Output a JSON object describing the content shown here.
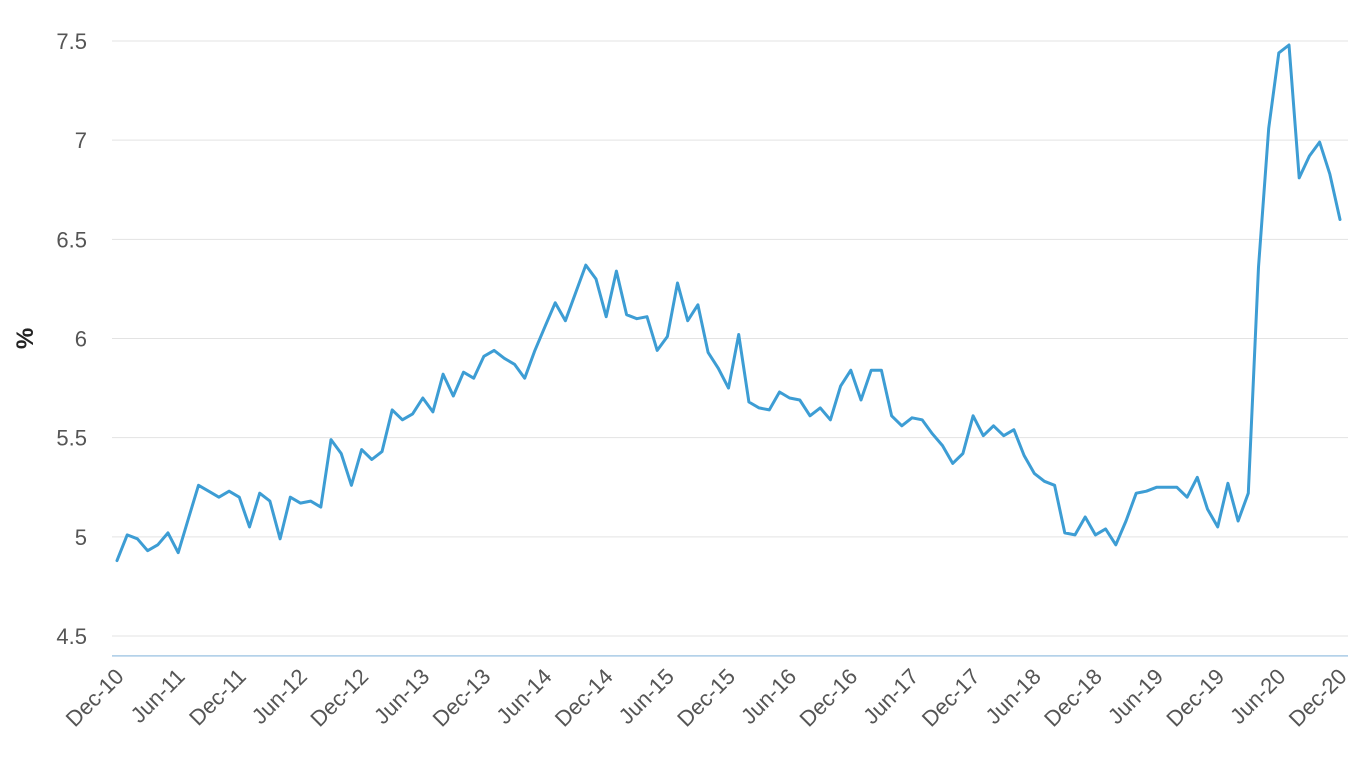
{
  "chart_data": {
    "type": "line",
    "title": "",
    "xlabel": "",
    "ylabel": "%",
    "ylim": [
      4.4,
      7.5
    ],
    "yticks": [
      4.5,
      5,
      5.5,
      6,
      6.5,
      7,
      7.5
    ],
    "ytick_labels": [
      "4.5",
      "5",
      "5.5",
      "6",
      "6.5",
      "7",
      "7.5"
    ],
    "xtick_labels": [
      "Dec-10",
      "Jun-11",
      "Dec-11",
      "Jun-12",
      "Dec-12",
      "Jun-13",
      "Dec-13",
      "Jun-14",
      "Dec-14",
      "Jun-15",
      "Dec-15",
      "Jun-16",
      "Dec-16",
      "Jun-17",
      "Dec-17",
      "Jun-18",
      "Dec-18",
      "Jun-19",
      "Dec-19",
      "Jun-20",
      "Dec-20"
    ],
    "grid": true,
    "legend": "none",
    "colors": {
      "line": "#3d9dd4"
    },
    "series": [
      {
        "name": "",
        "x": [
          "Dec-10",
          "Jan-11",
          "Feb-11",
          "Mar-11",
          "Apr-11",
          "May-11",
          "Jun-11",
          "Jul-11",
          "Aug-11",
          "Sep-11",
          "Oct-11",
          "Nov-11",
          "Dec-11",
          "Jan-12",
          "Feb-12",
          "Mar-12",
          "Apr-12",
          "May-12",
          "Jun-12",
          "Jul-12",
          "Aug-12",
          "Sep-12",
          "Oct-12",
          "Nov-12",
          "Dec-12",
          "Jan-13",
          "Feb-13",
          "Mar-13",
          "Apr-13",
          "May-13",
          "Jun-13",
          "Jul-13",
          "Aug-13",
          "Sep-13",
          "Oct-13",
          "Nov-13",
          "Dec-13",
          "Jan-14",
          "Feb-14",
          "Mar-14",
          "Apr-14",
          "May-14",
          "Jun-14",
          "Jul-14",
          "Aug-14",
          "Sep-14",
          "Oct-14",
          "Nov-14",
          "Dec-14",
          "Jan-15",
          "Feb-15",
          "Mar-15",
          "Apr-15",
          "May-15",
          "Jun-15",
          "Jul-15",
          "Aug-15",
          "Sep-15",
          "Oct-15",
          "Nov-15",
          "Dec-15",
          "Jan-16",
          "Feb-16",
          "Mar-16",
          "Apr-16",
          "May-16",
          "Jun-16",
          "Jul-16",
          "Aug-16",
          "Sep-16",
          "Oct-16",
          "Nov-16",
          "Dec-16",
          "Jan-17",
          "Feb-17",
          "Mar-17",
          "Apr-17",
          "May-17",
          "Jun-17",
          "Jul-17",
          "Aug-17",
          "Sep-17",
          "Oct-17",
          "Nov-17",
          "Dec-17",
          "Jan-18",
          "Feb-18",
          "Mar-18",
          "Apr-18",
          "May-18",
          "Jun-18",
          "Jul-18",
          "Aug-18",
          "Sep-18",
          "Oct-18",
          "Nov-18",
          "Dec-18",
          "Jan-19",
          "Feb-19",
          "Mar-19",
          "Apr-19",
          "May-19",
          "Jun-19",
          "Jul-19",
          "Aug-19",
          "Sep-19",
          "Oct-19",
          "Nov-19",
          "Dec-19",
          "Jan-20",
          "Feb-20",
          "Mar-20",
          "Apr-20",
          "May-20",
          "Jun-20",
          "Jul-20",
          "Aug-20",
          "Sep-20",
          "Oct-20",
          "Nov-20",
          "Dec-20"
        ],
        "values": [
          4.88,
          5.01,
          4.99,
          4.93,
          4.96,
          5.02,
          4.92,
          5.09,
          5.26,
          5.23,
          5.2,
          5.23,
          5.2,
          5.05,
          5.22,
          5.18,
          4.99,
          5.2,
          5.17,
          5.18,
          5.15,
          5.49,
          5.42,
          5.26,
          5.44,
          5.39,
          5.43,
          5.64,
          5.59,
          5.62,
          5.7,
          5.63,
          5.82,
          5.71,
          5.83,
          5.8,
          5.91,
          5.94,
          5.9,
          5.87,
          5.8,
          5.94,
          6.06,
          6.18,
          6.09,
          6.23,
          6.37,
          6.3,
          6.11,
          6.34,
          6.12,
          6.1,
          6.11,
          5.94,
          6.01,
          6.28,
          6.09,
          6.17,
          5.93,
          5.85,
          5.75,
          6.02,
          5.68,
          5.65,
          5.64,
          5.73,
          5.7,
          5.69,
          5.61,
          5.65,
          5.59,
          5.76,
          5.84,
          5.69,
          5.84,
          5.84,
          5.61,
          5.56,
          5.6,
          5.59,
          5.52,
          5.46,
          5.37,
          5.42,
          5.61,
          5.51,
          5.56,
          5.51,
          5.54,
          5.41,
          5.32,
          5.28,
          5.26,
          5.02,
          5.01,
          5.1,
          5.01,
          5.04,
          4.96,
          5.08,
          5.22,
          5.23,
          5.25,
          5.25,
          5.25,
          5.2,
          5.3,
          5.14,
          5.05,
          5.27,
          5.08,
          5.22,
          6.36,
          7.06,
          7.44,
          7.48,
          6.81,
          6.92,
          6.99,
          6.83,
          6.6
        ]
      }
    ]
  }
}
